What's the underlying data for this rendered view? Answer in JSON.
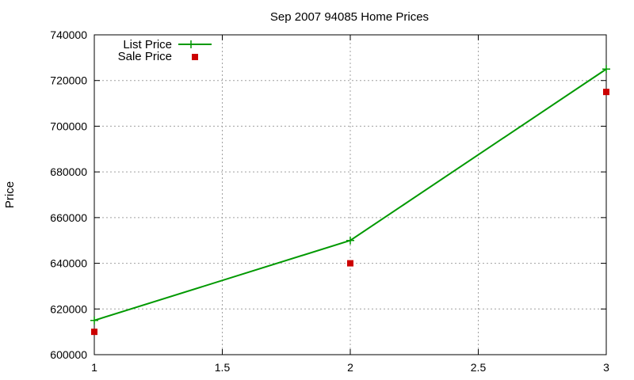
{
  "chart_data": {
    "type": "line",
    "title": "Sep 2007 94085 Home Prices",
    "xlabel": "",
    "ylabel": "Price",
    "xlim": [
      1,
      3
    ],
    "ylim": [
      600000,
      740000
    ],
    "x_ticks": [
      "1",
      "1.5",
      "2",
      "2.5",
      "3"
    ],
    "y_ticks": [
      "600000",
      "620000",
      "640000",
      "660000",
      "680000",
      "700000",
      "720000",
      "740000"
    ],
    "grid": true,
    "legend_position": "top-left",
    "series": [
      {
        "name": "List Price",
        "style": "line-with-plus-markers",
        "color": "#009900",
        "x": [
          1,
          2,
          3
        ],
        "y": [
          615000,
          650000,
          725000
        ]
      },
      {
        "name": "Sale Price",
        "style": "square-markers",
        "color": "#cc0000",
        "x": [
          1,
          2,
          3
        ],
        "y": [
          610000,
          640000,
          715000
        ]
      }
    ]
  }
}
